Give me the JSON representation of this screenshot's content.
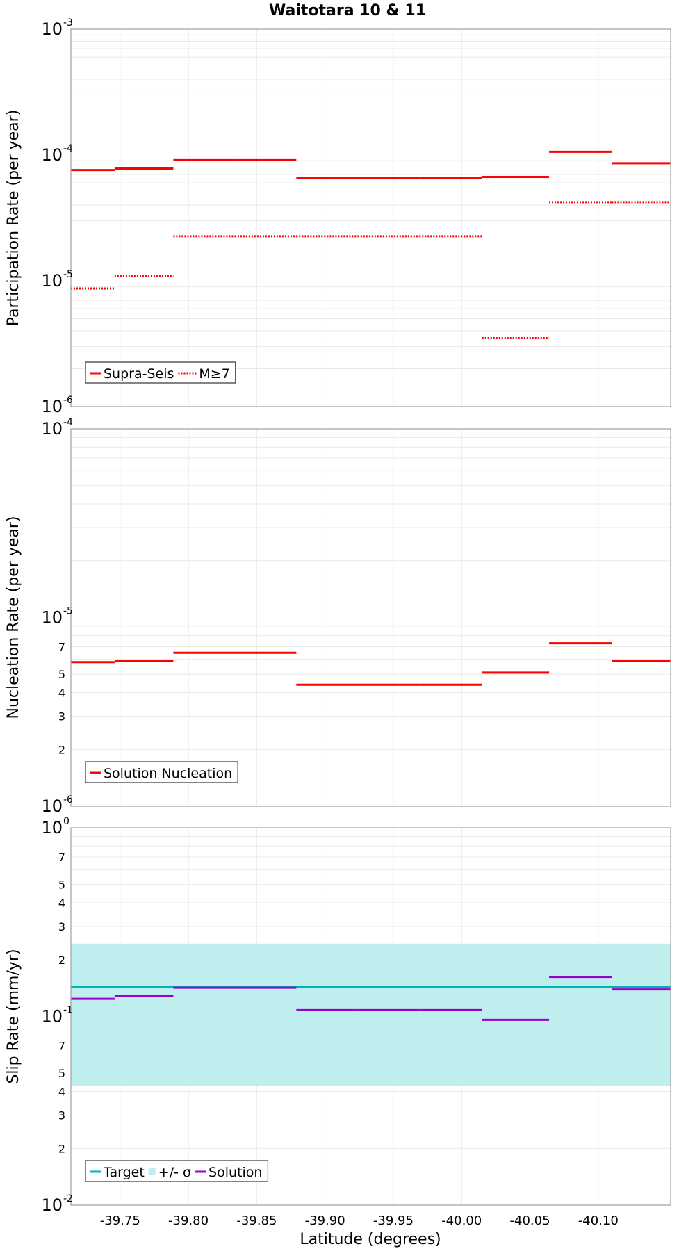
{
  "title": "Waitotara 10 & 11",
  "xlabel": "Latitude (degrees)",
  "x_ticks": [
    "-39.75",
    "-39.80",
    "-39.85",
    "-39.90",
    "-39.95",
    "-40.00",
    "-40.05",
    "-40.10"
  ],
  "colors": {
    "red": "#ff0000",
    "target": "#00b4b4",
    "sigma_band": "#bfeeee",
    "solution": "#9900cc"
  },
  "chart_data": [
    {
      "type": "line",
      "ylabel": "Participation Rate (per year)",
      "yscale": "log",
      "ylim": [
        1e-06,
        0.001
      ],
      "xlim": [
        -39.714,
        -40.153
      ],
      "y_major_ticks": [
        {
          "base": "10",
          "exp": "-6"
        },
        {
          "base": "10",
          "exp": "-5"
        },
        {
          "base": "10",
          "exp": "-4"
        },
        {
          "base": "10",
          "exp": "-3"
        }
      ],
      "y_minor_labels": [],
      "legend": [
        "Supra-Seis",
        "M≥7"
      ],
      "legend_location": "bottom-left",
      "x_edges": [
        -39.714,
        -39.746,
        -39.789,
        -39.834,
        -39.879,
        -39.924,
        -39.969,
        -40.015,
        -40.064,
        -40.11,
        -40.153
      ],
      "series": [
        {
          "name": "Supra-Seis",
          "style": "solid",
          "color": "#ff0000",
          "values": [
            7.6e-05,
            7.8e-05,
            9.1e-05,
            9.1e-05,
            6.6e-05,
            6.6e-05,
            6.6e-05,
            6.7e-05,
            0.000106,
            8.6e-05
          ]
        },
        {
          "name": "M≥7",
          "style": "dotted",
          "color": "#ff0000",
          "values": [
            8.7e-06,
            1.09e-05,
            2.26e-05,
            2.26e-05,
            2.26e-05,
            2.26e-05,
            2.26e-05,
            3.5e-06,
            4.22e-05,
            4.22e-05
          ]
        }
      ]
    },
    {
      "type": "line",
      "ylabel": "Nucleation Rate (per year)",
      "yscale": "log",
      "ylim": [
        1e-06,
        0.0001
      ],
      "xlim": [
        -39.714,
        -40.153
      ],
      "y_major_ticks": [
        {
          "base": "10",
          "exp": "-6"
        },
        {
          "base": "10",
          "exp": "-5"
        },
        {
          "base": "10",
          "exp": "-4"
        }
      ],
      "y_minor_labels": [
        "2",
        "3",
        "4",
        "5",
        "7"
      ],
      "legend": [
        "Solution Nucleation"
      ],
      "legend_location": "bottom-left",
      "x_edges": [
        -39.714,
        -39.746,
        -39.789,
        -39.834,
        -39.879,
        -39.924,
        -39.969,
        -40.015,
        -40.064,
        -40.11,
        -40.153
      ],
      "series": [
        {
          "name": "Solution Nucleation",
          "style": "solid",
          "color": "#ff0000",
          "values": [
            5.8e-06,
            5.9e-06,
            6.5e-06,
            6.5e-06,
            4.4e-06,
            4.4e-06,
            4.4e-06,
            5.1e-06,
            7.3e-06,
            5.9e-06
          ]
        }
      ]
    },
    {
      "type": "line",
      "ylabel": "Slip Rate (mm/yr)",
      "yscale": "log",
      "ylim": [
        0.01,
        1
      ],
      "xlim": [
        -39.714,
        -40.153
      ],
      "y_major_ticks": [
        {
          "base": "10",
          "exp": "-2"
        },
        {
          "base": "10",
          "exp": "-1"
        },
        {
          "base": "10",
          "exp": "0"
        }
      ],
      "y_minor_labels": [
        "2",
        "3",
        "4",
        "5",
        "7",
        "2",
        "3",
        "4",
        "5",
        "7"
      ],
      "legend": [
        "Target",
        "+/- σ",
        "Solution"
      ],
      "legend_location": "bottom-left",
      "x_edges": [
        -39.714,
        -39.746,
        -39.789,
        -39.834,
        -39.879,
        -39.924,
        -39.969,
        -40.015,
        -40.064,
        -40.11,
        -40.153
      ],
      "target": 0.143,
      "sigma_band": [
        0.043,
        0.243
      ],
      "series": [
        {
          "name": "Solution",
          "style": "solid",
          "color": "#9900cc",
          "values": [
            0.124,
            0.128,
            0.142,
            0.142,
            0.108,
            0.108,
            0.108,
            0.096,
            0.162,
            0.139
          ]
        }
      ]
    }
  ]
}
